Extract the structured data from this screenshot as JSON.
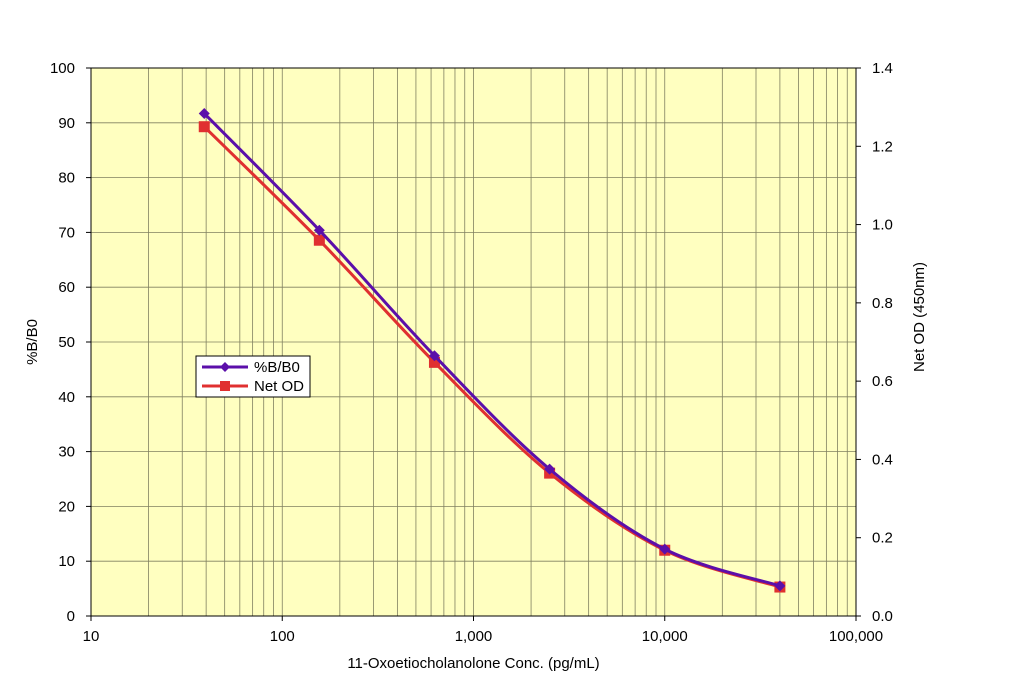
{
  "chart_data": {
    "type": "line",
    "title": "",
    "xlabel": "11-Oxoetiocholanolone Conc. (pg/mL)",
    "ylabel_left": "%B/B0",
    "ylabel_right": "Net OD (450nm)",
    "x_scale": "log",
    "xlim": [
      10,
      100000
    ],
    "ylim_left": [
      0,
      100
    ],
    "ylim_right": [
      0.0,
      1.4
    ],
    "x_tick_labels": [
      "10",
      "100",
      "1,000",
      "10,000",
      "100,000"
    ],
    "y_left_tick_labels": [
      "0",
      "10",
      "20",
      "30",
      "40",
      "50",
      "60",
      "70",
      "80",
      "90",
      "100"
    ],
    "y_right_tick_labels": [
      "0.0",
      "0.2",
      "0.4",
      "0.6",
      "0.8",
      "1.0",
      "1.2",
      "1.4"
    ],
    "grid": true,
    "legend_position": "left-middle",
    "plot_background": "#FFFFC0",
    "series": [
      {
        "name": "%B/B0",
        "axis": "left",
        "color": "#5B0FAA",
        "marker": "diamond",
        "x": [
          39.1,
          156.3,
          625,
          2500,
          10000,
          40000
        ],
        "y": [
          91.7,
          70.4,
          47.5,
          26.8,
          12.2,
          5.5
        ]
      },
      {
        "name": "Net OD",
        "axis": "right",
        "color": "#E03030",
        "marker": "square",
        "x": [
          39.1,
          156.3,
          625,
          2500,
          10000,
          40000
        ],
        "y": [
          1.25,
          0.96,
          0.648,
          0.365,
          0.168,
          0.074
        ]
      }
    ]
  }
}
